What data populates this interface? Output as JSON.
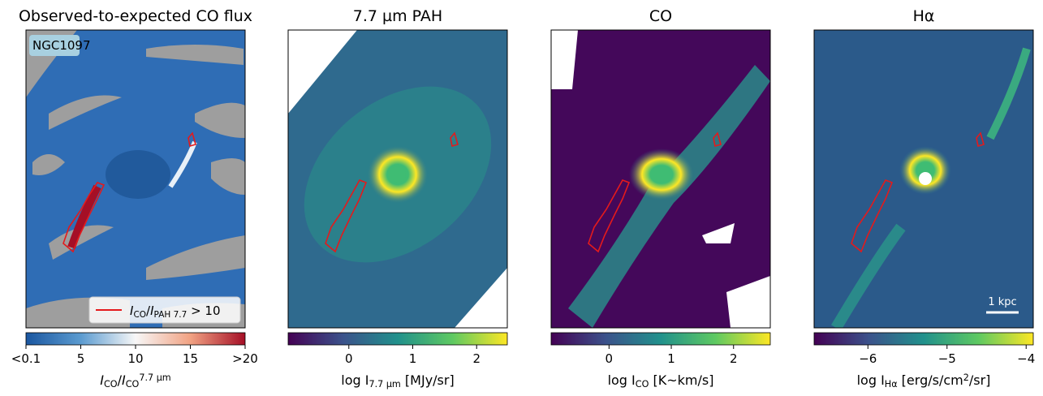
{
  "panels": [
    {
      "title": "Observed-to-expected CO flux",
      "annotation": "NGC1097",
      "legend": [
        {
          "text": "I",
          "italic": true
        },
        {
          "text": "CO",
          "sub": true
        },
        {
          "text": "/"
        },
        {
          "text": "I",
          "italic": true
        },
        {
          "text": "PAH 7.7",
          "sub": true
        },
        {
          "text": " > 10"
        }
      ],
      "colorbar": {
        "lim": [
          0,
          20
        ],
        "ticks": [
          {
            "value": 0,
            "label": "<0.1"
          },
          5,
          10,
          15,
          {
            "value": 20,
            "label": ">20"
          }
        ],
        "colors": [
          "#1a56a0",
          "#5b9bd0",
          "#f7f7f7",
          "#f1a283",
          "#a50f26"
        ],
        "label": [
          {
            "text": "I",
            "italic": true
          },
          {
            "text": "CO",
            "sub": true
          },
          {
            "text": "/"
          },
          {
            "text": "I",
            "italic": true
          },
          {
            "text": "CO",
            "sub": true
          },
          {
            "text": "7.7 µm",
            "sup": true
          }
        ]
      }
    },
    {
      "title": "7.7 µm PAH",
      "colorbar": {
        "lim": [
          -0.95,
          2.48
        ],
        "ticks": [
          0,
          1,
          2
        ],
        "colors": [
          "#440154",
          "#3b528b",
          "#21918c",
          "#5ec962",
          "#fde725"
        ],
        "label": [
          {
            "text": "log I"
          },
          {
            "text": "7.7 µm",
            "sub": true
          },
          {
            "text": " [MJy/sr]"
          }
        ]
      }
    },
    {
      "title": "CO",
      "colorbar": {
        "lim": [
          -0.93,
          2.59
        ],
        "ticks": [
          0,
          1,
          2
        ],
        "colors": [
          "#440154",
          "#3b528b",
          "#21918c",
          "#5ec962",
          "#fde725"
        ],
        "label": [
          {
            "text": "log I"
          },
          {
            "text": "CO",
            "sub": true
          },
          {
            "text": " [K~km/s]"
          }
        ]
      }
    },
    {
      "title": "Hα",
      "scalebar": "1 kpc",
      "colorbar": {
        "lim": [
          -6.68,
          -3.91
        ],
        "ticks": [
          {
            "value": -6,
            "label": "−6"
          },
          {
            "value": -5,
            "label": "−5"
          },
          {
            "value": -4,
            "label": "−4"
          }
        ],
        "colors": [
          "#440154",
          "#3b528b",
          "#21918c",
          "#5ec962",
          "#fde725"
        ],
        "label": [
          {
            "text": "log I"
          },
          {
            "text": "Hα",
            "sub": true
          },
          {
            "text": " [erg/s/cm"
          },
          {
            "text": "2",
            "sup": true
          },
          {
            "text": "/sr]"
          }
        ]
      }
    }
  ]
}
